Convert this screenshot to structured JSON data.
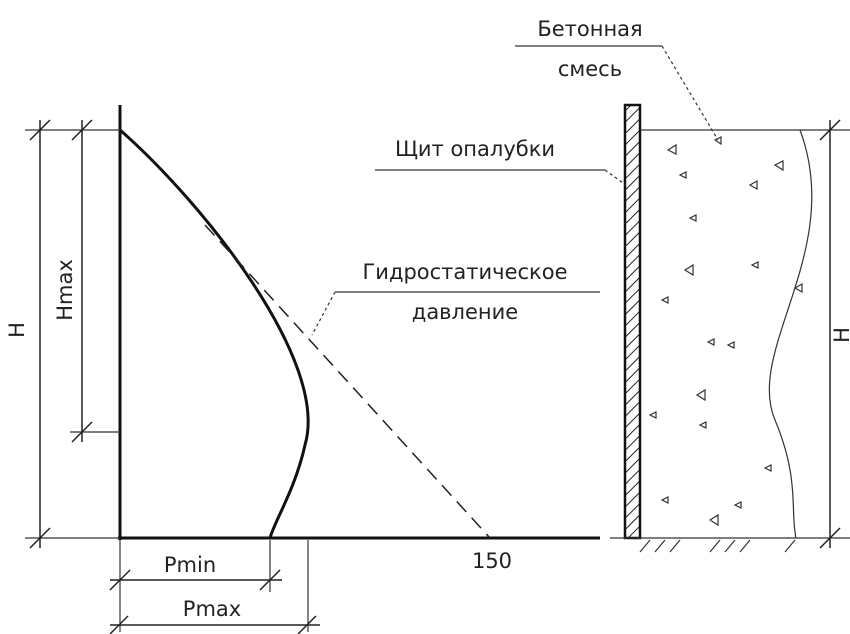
{
  "pressure_diagram": {
    "height_label": "H",
    "hmax_label": "Hmax",
    "hydrostatic_label": [
      "Гидростатическое",
      "давление"
    ],
    "pmin_label": "Pmin",
    "pmax_label": "Pmax",
    "axis_value": "150"
  },
  "formwork": {
    "concrete_label": [
      "Бетонная",
      "смесь"
    ],
    "shield_label": "Щит опалубки",
    "height_label": "H"
  }
}
